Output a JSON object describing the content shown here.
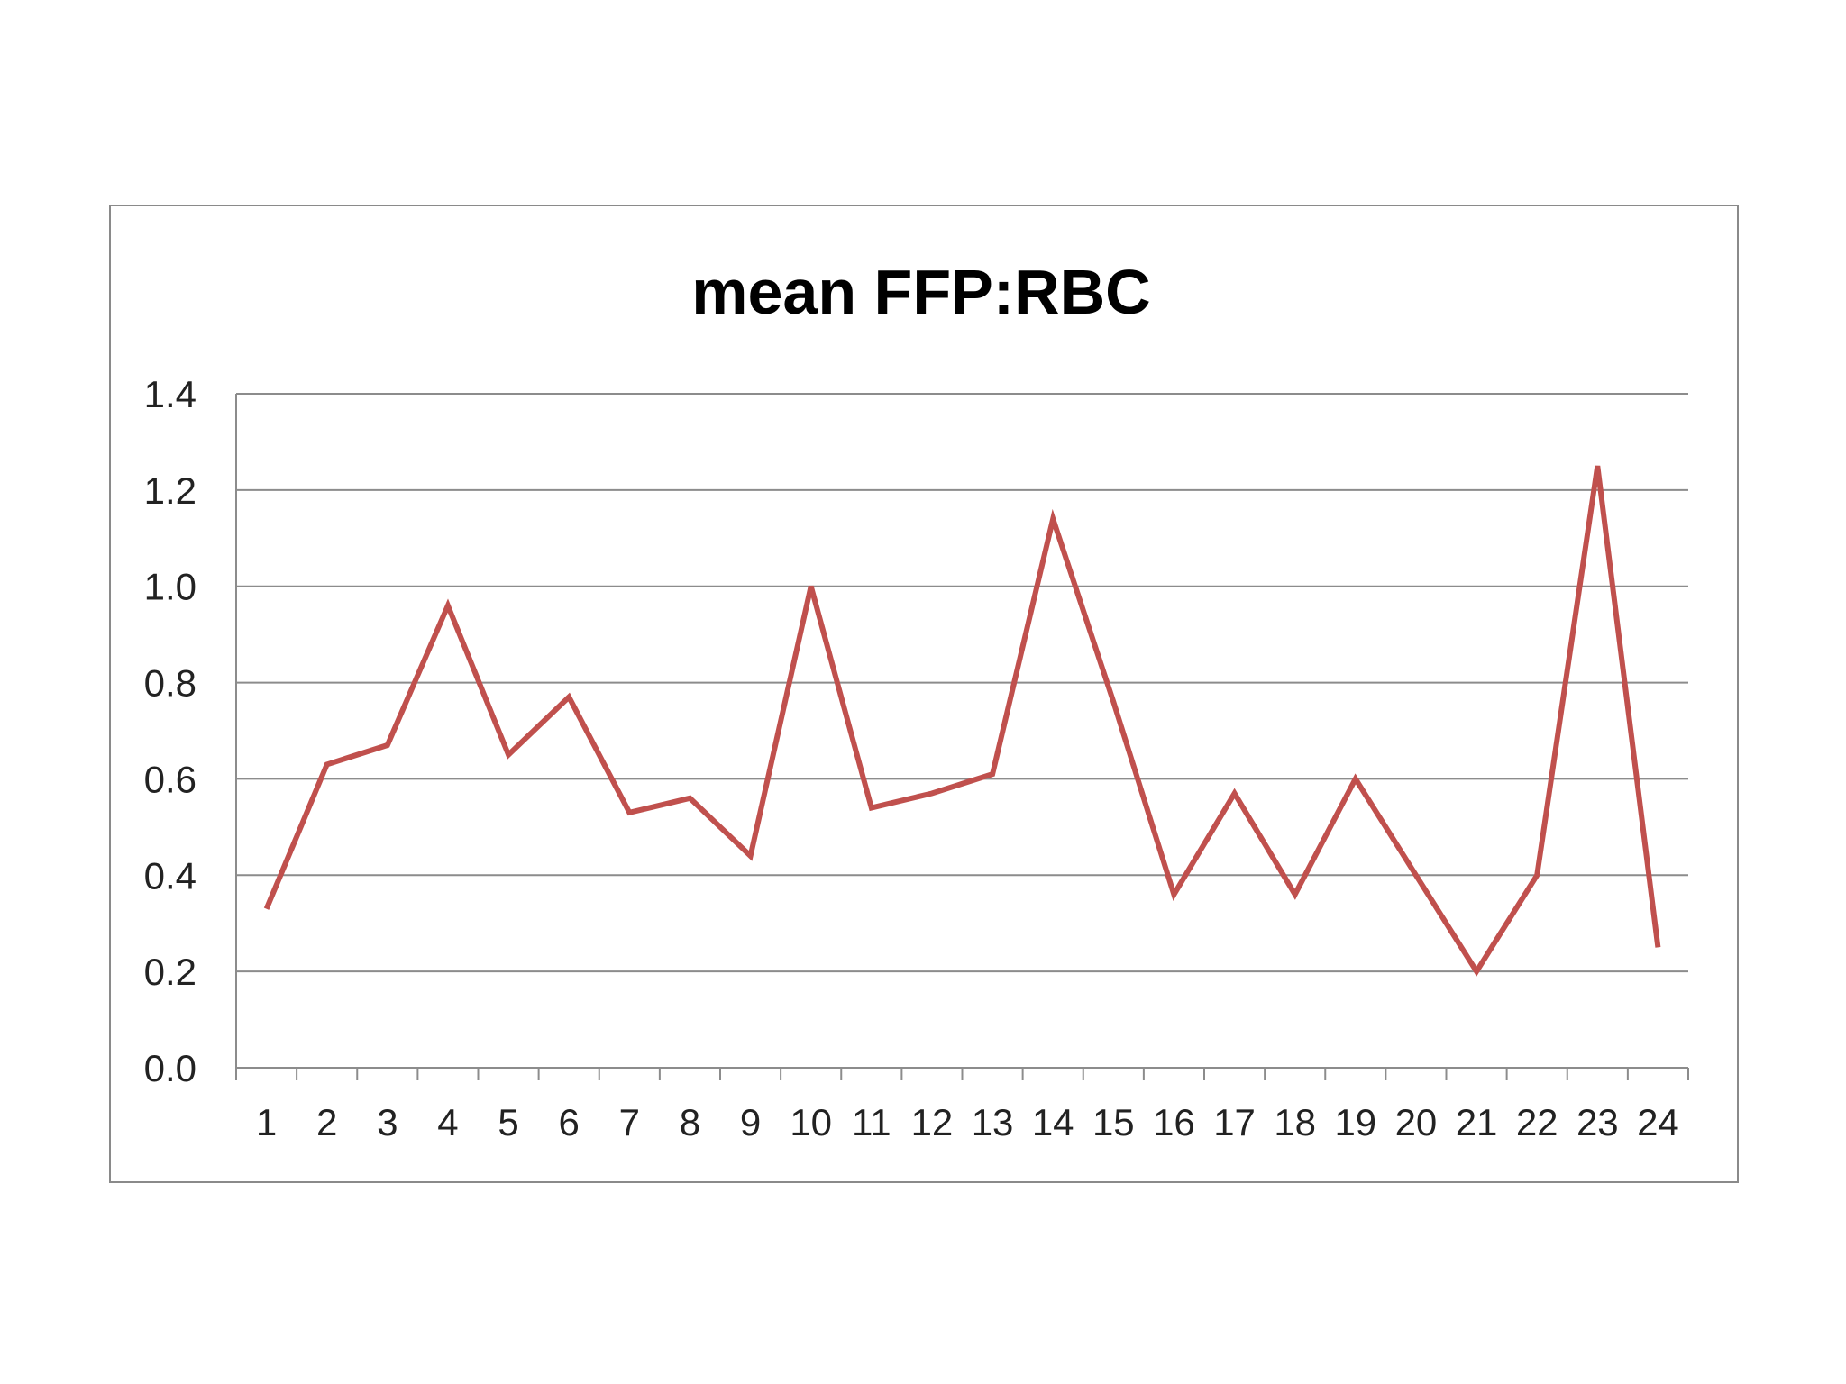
{
  "chart_data": {
    "type": "line",
    "title": "mean FFP:RBC",
    "xlabel": "",
    "ylabel": "",
    "categories": [
      "1",
      "2",
      "3",
      "4",
      "5",
      "6",
      "7",
      "8",
      "9",
      "10",
      "11",
      "12",
      "13",
      "14",
      "15",
      "16",
      "17",
      "18",
      "19",
      "20",
      "21",
      "22",
      "23",
      "24"
    ],
    "series": [
      {
        "values": [
          0.33,
          0.63,
          0.67,
          0.96,
          0.65,
          0.77,
          0.53,
          0.56,
          0.44,
          1.0,
          0.54,
          0.57,
          0.61,
          1.14,
          0.76,
          0.36,
          0.57,
          0.36,
          0.6,
          0.4,
          0.2,
          0.4,
          1.25,
          0.25
        ],
        "color": "#c0504d"
      }
    ],
    "ylim": [
      0,
      1.4
    ],
    "yticks": [
      "0.0",
      "0.2",
      "0.4",
      "0.6",
      "0.8",
      "1.0",
      "1.2",
      "1.4"
    ],
    "grid": true,
    "legend": "none"
  }
}
